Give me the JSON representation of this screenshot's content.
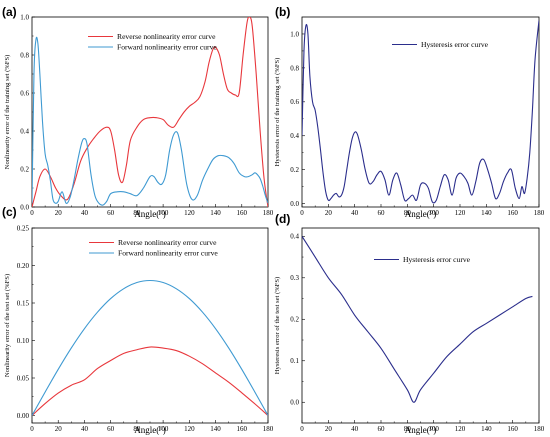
{
  "colors": {
    "red": "#e8373c",
    "blue": "#3f9ad2",
    "navy": "#2b2e8c"
  },
  "chart_data": [
    {
      "panel": "(a)",
      "type": "line",
      "xlabel": "Angle(°)",
      "ylabel": "Nonlinearity error of the training set (%FS)",
      "xlim": [
        0,
        180
      ],
      "ylim": [
        0,
        1.0
      ],
      "xticks": [
        0,
        20,
        40,
        60,
        80,
        100,
        120,
        140,
        160,
        180
      ],
      "yticks": [
        0.0,
        0.2,
        0.4,
        0.6,
        0.8,
        1.0
      ],
      "xtick_labels": [
        "0",
        "20",
        "40",
        "60",
        "80",
        "100",
        "120",
        "140",
        "160",
        "180"
      ],
      "ytick_labels": [
        "0.0",
        "0.2",
        "0.4",
        "0.6",
        "0.8",
        "1.0"
      ],
      "legend": "top-center",
      "series": [
        {
          "name": "Reverse nonlinearity error curve",
          "color": "#e8373c",
          "x": [
            0,
            3,
            6,
            10,
            14,
            18,
            22,
            27,
            32,
            37,
            42,
            47,
            52,
            57,
            60,
            63,
            66,
            69,
            72,
            75,
            80,
            85,
            90,
            95,
            100,
            104,
            108,
            112,
            116,
            120,
            124,
            128,
            132,
            135,
            138,
            140,
            143,
            146,
            149,
            152,
            155,
            158,
            161,
            164,
            166,
            168,
            171,
            174,
            177,
            180
          ],
          "y": [
            0.0,
            0.08,
            0.16,
            0.2,
            0.16,
            0.1,
            0.06,
            0.04,
            0.12,
            0.24,
            0.31,
            0.36,
            0.4,
            0.42,
            0.4,
            0.3,
            0.17,
            0.13,
            0.22,
            0.35,
            0.42,
            0.46,
            0.47,
            0.47,
            0.46,
            0.43,
            0.42,
            0.46,
            0.5,
            0.53,
            0.55,
            0.58,
            0.66,
            0.76,
            0.83,
            0.84,
            0.8,
            0.7,
            0.62,
            0.6,
            0.59,
            0.6,
            0.8,
            0.97,
            1.0,
            0.95,
            0.7,
            0.4,
            0.15,
            0.0
          ]
        },
        {
          "name": "Forward  nonlinearity error curve",
          "color": "#3f9ad2",
          "x": [
            0,
            1.5,
            3,
            4.5,
            6,
            8,
            10,
            12,
            14,
            16,
            18,
            20,
            23,
            26,
            29,
            32,
            35,
            38,
            40,
            42,
            45,
            48,
            51,
            54,
            57,
            60,
            65,
            70,
            75,
            80,
            85,
            90,
            93,
            96,
            99,
            102,
            105,
            108,
            111,
            114,
            118,
            122,
            126,
            130,
            134,
            138,
            142,
            146,
            150,
            154,
            158,
            162,
            165,
            168,
            170,
            172,
            174,
            176,
            178,
            180
          ],
          "y": [
            0.02,
            0.7,
            0.88,
            0.86,
            0.7,
            0.45,
            0.28,
            0.22,
            0.14,
            0.04,
            0.02,
            0.03,
            0.08,
            0.02,
            0.05,
            0.14,
            0.25,
            0.34,
            0.36,
            0.33,
            0.17,
            0.06,
            0.02,
            0.01,
            0.03,
            0.07,
            0.08,
            0.08,
            0.07,
            0.06,
            0.1,
            0.16,
            0.16,
            0.13,
            0.12,
            0.17,
            0.3,
            0.38,
            0.39,
            0.3,
            0.12,
            0.04,
            0.06,
            0.14,
            0.2,
            0.25,
            0.27,
            0.27,
            0.26,
            0.23,
            0.18,
            0.16,
            0.16,
            0.17,
            0.18,
            0.17,
            0.15,
            0.11,
            0.06,
            0.02
          ]
        }
      ]
    },
    {
      "panel": "(b)",
      "type": "line",
      "xlabel": "Angle(°)",
      "ylabel": "Hysteresis error of the training set (%FS)",
      "xlim": [
        0,
        180
      ],
      "ylim": [
        -0.02,
        1.1
      ],
      "xticks": [
        0,
        20,
        40,
        60,
        80,
        100,
        120,
        140,
        160,
        180
      ],
      "yticks": [
        0.0,
        0.2,
        0.4,
        0.6,
        0.8,
        1.0
      ],
      "xtick_labels": [
        "0",
        "20",
        "40",
        "60",
        "80",
        "100",
        "120",
        "140",
        "160",
        "180"
      ],
      "ytick_labels": [
        "0.0",
        "0.2",
        "0.4",
        "0.6",
        "0.8",
        "1.0"
      ],
      "legend": "top-center",
      "series": [
        {
          "name": "Hysteresis error curve",
          "color": "#2b2e8c",
          "x": [
            0,
            1.5,
            3,
            4.5,
            6,
            8,
            10,
            12,
            14,
            16,
            18,
            20,
            22,
            24,
            26,
            28,
            30,
            32,
            34,
            36,
            38,
            40,
            42,
            45,
            48,
            51,
            54,
            57,
            60,
            63,
            66,
            69,
            72,
            75,
            78,
            81,
            84,
            87,
            90,
            93,
            96,
            99,
            102,
            105,
            108,
            111,
            114,
            117,
            120,
            123,
            126,
            129,
            132,
            135,
            138,
            141,
            144,
            147,
            150,
            153,
            156,
            159,
            162,
            165,
            167,
            169,
            171,
            173,
            175,
            177,
            180
          ],
          "y": [
            0.4,
            0.9,
            1.05,
            1.0,
            0.75,
            0.6,
            0.55,
            0.45,
            0.32,
            0.18,
            0.07,
            0.02,
            0.03,
            0.05,
            0.06,
            0.04,
            0.05,
            0.1,
            0.2,
            0.3,
            0.38,
            0.42,
            0.41,
            0.32,
            0.2,
            0.12,
            0.13,
            0.17,
            0.19,
            0.14,
            0.05,
            0.14,
            0.18,
            0.11,
            0.02,
            0.03,
            0.05,
            0.02,
            0.11,
            0.12,
            0.09,
            0.01,
            0.02,
            0.1,
            0.17,
            0.14,
            0.05,
            0.15,
            0.18,
            0.16,
            0.12,
            0.05,
            0.13,
            0.24,
            0.26,
            0.2,
            0.12,
            0.03,
            0.06,
            0.13,
            0.18,
            0.2,
            0.09,
            0.03,
            0.1,
            0.06,
            0.15,
            0.3,
            0.55,
            0.85,
            1.08
          ]
        }
      ]
    },
    {
      "panel": "(c)",
      "type": "line",
      "xlabel": "Angle(°)",
      "ylabel": "Nonlinearity error of the test set (%FS)",
      "xlim": [
        0,
        180
      ],
      "ylim": [
        -0.01,
        0.25
      ],
      "xticks": [
        0,
        20,
        40,
        60,
        80,
        100,
        120,
        140,
        160,
        180
      ],
      "yticks": [
        0.0,
        0.05,
        0.1,
        0.15,
        0.2,
        0.25
      ],
      "xtick_labels": [
        "0",
        "20",
        "40",
        "60",
        "80",
        "100",
        "120",
        "140",
        "160",
        "180"
      ],
      "ytick_labels": [
        "0.00",
        "0.05",
        "0.10",
        "0.15",
        "0.20",
        "0.25"
      ],
      "legend": "top-center",
      "series": [
        {
          "name": "Reverse nonlinearity error curve",
          "color": "#e8373c",
          "x": [
            0,
            10,
            20,
            30,
            40,
            50,
            60,
            70,
            80,
            90,
            100,
            110,
            120,
            130,
            140,
            150,
            160,
            170,
            180
          ],
          "y": [
            0.0,
            0.0159,
            0.0299,
            0.0404,
            0.0476,
            0.0627,
            0.0733,
            0.0828,
            0.0877,
            0.0913,
            0.0899,
            0.0866,
            0.0791,
            0.0691,
            0.0567,
            0.0444,
            0.0303,
            0.0155,
            0.0
          ]
        },
        {
          "name": "Forward nonlinearity error curve",
          "color": "#3f9ad2",
          "x": [
            0,
            10,
            20,
            30,
            40,
            50,
            60,
            70,
            80,
            90,
            100,
            110,
            120,
            130,
            140,
            150,
            160,
            170,
            180
          ],
          "y": [
            0.0,
            0.0312,
            0.0616,
            0.0901,
            0.1158,
            0.1379,
            0.1559,
            0.1691,
            0.1773,
            0.18,
            0.1773,
            0.1691,
            0.1559,
            0.1379,
            0.1158,
            0.0901,
            0.0616,
            0.0312,
            0.0
          ]
        }
      ]
    },
    {
      "panel": "(d)",
      "type": "line",
      "xlabel": "Angle(°)",
      "ylabel": "Hysteresis error of the test set (%FS)",
      "xlim": [
        0,
        180
      ],
      "ylim": [
        -0.05,
        0.42
      ],
      "xticks": [
        0,
        20,
        40,
        60,
        80,
        100,
        120,
        140,
        160,
        180
      ],
      "yticks": [
        0.0,
        0.1,
        0.2,
        0.3,
        0.4
      ],
      "xtick_labels": [
        "0",
        "20",
        "40",
        "60",
        "80",
        "100",
        "120",
        "140",
        "160",
        "180"
      ],
      "ytick_labels": [
        "0.0",
        "0.1",
        "0.2",
        "0.3",
        "0.4"
      ],
      "legend": "top-center",
      "series": [
        {
          "name": "Hysteresis error curve",
          "color": "#2b2e8c",
          "x": [
            0,
            10,
            20,
            30,
            40,
            50,
            60,
            70,
            80,
            85,
            90,
            100,
            110,
            120,
            130,
            140,
            150,
            160,
            170,
            175
          ],
          "y": [
            0.4,
            0.35,
            0.3,
            0.26,
            0.21,
            0.17,
            0.13,
            0.08,
            0.03,
            0.0,
            0.03,
            0.07,
            0.11,
            0.14,
            0.17,
            0.19,
            0.21,
            0.23,
            0.25,
            0.255
          ]
        }
      ]
    }
  ]
}
